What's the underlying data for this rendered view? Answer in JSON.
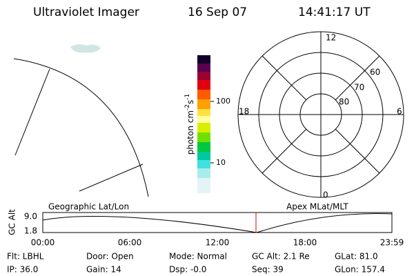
{
  "header": {
    "title": "Ultraviolet Imager",
    "date": "16 Sep 07",
    "time": "14:41:17 UT"
  },
  "colorbar": {
    "label": "photon cm",
    "exp1": "-2",
    "unit2": "s",
    "exp2": "-1",
    "ticks": [
      "100",
      "10"
    ]
  },
  "polar": {
    "mlt_labels": [
      "12",
      "18",
      "6",
      "0"
    ],
    "lat_labels": [
      "60",
      "70",
      "80"
    ]
  },
  "altitude": {
    "ylabel": "GC Alt",
    "yticks": [
      "9.0",
      "1.8"
    ],
    "left_label": "Geographic Lat/Lon",
    "right_label": "Apex MLat/MLT",
    "xticks": [
      "00:00",
      "06:00",
      "12:00",
      "18:00",
      "23:59"
    ]
  },
  "footer": {
    "rows": [
      [
        "Flt: LBHL",
        "Door: Open",
        "Mode: Normal",
        "GC Alt: 2.1 Re",
        "GLat: 81.0"
      ],
      [
        "IP: 36.0",
        "Gain: 14",
        "Dsp: -0.0",
        "Seq: 39",
        "GLon: 157.4"
      ]
    ]
  }
}
